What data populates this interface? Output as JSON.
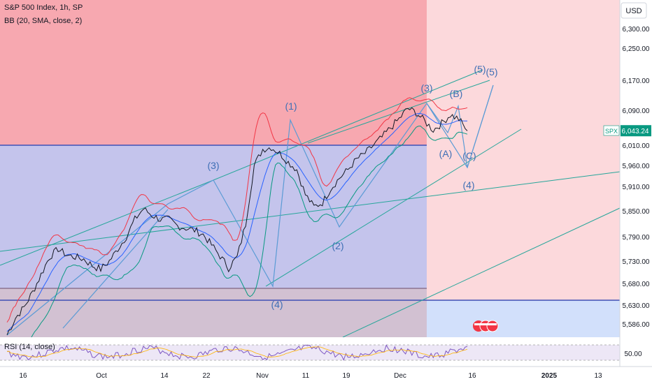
{
  "header": {
    "title": "S&P 500 Index, 1h, SP",
    "indicator": "BB (20, SMA, close, 2)",
    "currency": "USD"
  },
  "rsi": {
    "label": "RSI (14, close)",
    "scale_label": "50.00",
    "value_hint": 50
  },
  "price_tag": {
    "symbol": "SPX",
    "value": "6,043.24",
    "price": 6043.24,
    "color": "#089981"
  },
  "chart_data": {
    "type": "line",
    "title": "S&P 500 Index, 1h, SP",
    "y_ticks": [
      "6,300.00",
      "6,250.00",
      "6,170.00",
      "6,090.00",
      "6,010.00",
      "5,960.00",
      "5,910.00",
      "5,850.00",
      "5,790.00",
      "5,730.00",
      "5,680.00",
      "5,630.00",
      "5,586.00"
    ],
    "x_ticks": [
      "16",
      "Oct",
      "14",
      "22",
      "Nov",
      "11",
      "19",
      "Dec",
      "16",
      "2025",
      "13"
    ],
    "series": [
      {
        "name": "",
        "values": [
          5560,
          5600,
          5625,
          5660,
          5700,
          5740,
          5760,
          5745,
          5740,
          5735,
          5720,
          5712,
          5730,
          5760,
          5790,
          5830,
          5855,
          5840,
          5830,
          5830,
          5815,
          5810,
          5805,
          5795,
          5770,
          5742,
          5715,
          5740,
          5820,
          5960,
          6000,
          6005,
          5990,
          5968,
          5950,
          5890,
          5860,
          5870,
          5905,
          5930,
          5950,
          5975,
          5990,
          6010,
          6028,
          6050,
          6070,
          6095,
          6085,
          6065,
          6045,
          6060,
          6080,
          6070,
          6043
        ]
      }
    ],
    "wave_labels": [
      "(3)",
      "(4)",
      "(1)",
      "(2)",
      "(3)",
      "(4)",
      "(5)",
      "(5)",
      "(A)",
      "(B)",
      "(C)"
    ],
    "zones": [
      {
        "name": "red zone",
        "color": "#f7a8b0"
      },
      {
        "name": "blue zone",
        "color": "#b9c2ec"
      },
      {
        "name": "future zone",
        "color": "#fbd5d8"
      }
    ],
    "colors": {
      "bollinger_upper": "#f23645",
      "bollinger_lower": "#089981",
      "basis": "#2962ff",
      "trendlines": "#26a69a",
      "wave_lines": "#5b9bd5",
      "price": "#131722",
      "rsi": "#7e57c2"
    },
    "ylim": [
      5560,
      6330
    ],
    "grid": false
  }
}
